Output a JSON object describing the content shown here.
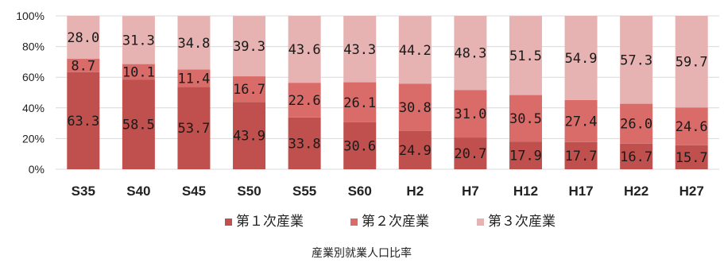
{
  "chart_data": {
    "type": "bar",
    "stacked": true,
    "percent_stacked": true,
    "title": "",
    "xlabel": "",
    "ylabel": "",
    "ylim": [
      0,
      100
    ],
    "yticks": [
      "0%",
      "20%",
      "40%",
      "60%",
      "80%",
      "100%"
    ],
    "grid": true,
    "legend_position": "bottom",
    "caption": "産業別就業人口比率",
    "categories": [
      "S35",
      "S40",
      "S45",
      "S50",
      "S55",
      "S60",
      "H2",
      "H7",
      "H12",
      "H17",
      "H22",
      "H27"
    ],
    "series": [
      {
        "name": "第１次産業",
        "color": "#c0504d",
        "values": [
          63.3,
          58.5,
          53.7,
          43.9,
          33.8,
          30.6,
          24.9,
          20.7,
          17.9,
          17.7,
          16.7,
          15.7
        ],
        "labels": [
          "63.3",
          "58.5",
          "53.7",
          "43.9",
          "33.8",
          "30.6",
          "24.9",
          "20.7",
          "17.9",
          "17.7",
          "16.7",
          "15.7"
        ]
      },
      {
        "name": "第２次産業",
        "color": "#d96b69",
        "values": [
          8.7,
          10.1,
          11.4,
          16.7,
          22.6,
          26.1,
          30.8,
          31.0,
          30.5,
          27.4,
          26.0,
          24.6
        ],
        "labels": [
          "8.7",
          "10.1",
          "11.4",
          "16.7",
          "22.6",
          "26.1",
          "30.8",
          "31.0",
          "30.5",
          "27.4",
          "26.0",
          "24.6"
        ]
      },
      {
        "name": "第３次産業",
        "color": "#e6b3b2",
        "values": [
          28.0,
          31.3,
          34.8,
          39.3,
          43.6,
          43.3,
          44.2,
          48.3,
          51.5,
          54.9,
          57.3,
          59.7
        ],
        "labels": [
          "28.0",
          "31.3",
          "34.8",
          "39.3",
          "43.6",
          "43.3",
          "44.2",
          "48.3",
          "51.5",
          "54.9",
          "57.3",
          "59.7"
        ]
      }
    ]
  }
}
